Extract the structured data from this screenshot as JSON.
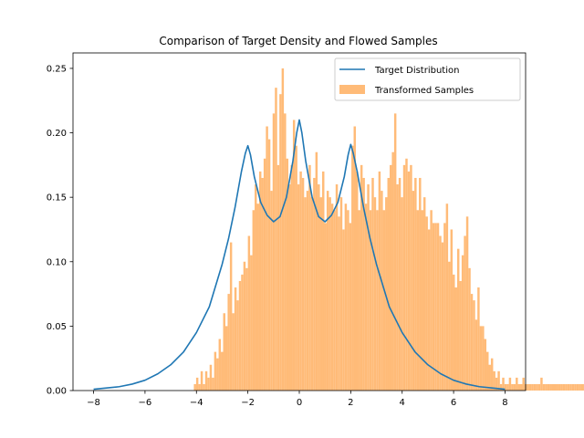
{
  "chart_data": {
    "type": "histogram+line",
    "title": "Comparison of Target Density and Flowed Samples",
    "xlabel": "",
    "ylabel": "",
    "xlim": [
      -8.8,
      8.8
    ],
    "ylim": [
      0,
      0.262
    ],
    "xticks": [
      -8,
      -6,
      -4,
      -2,
      0,
      2,
      4,
      6,
      8
    ],
    "yticks": [
      0.0,
      0.05,
      0.1,
      0.15,
      0.2,
      0.25
    ],
    "xtick_labels": [
      "−8",
      "−6",
      "−4",
      "−2",
      "0",
      "2",
      "4",
      "6",
      "8"
    ],
    "ytick_labels": [
      "0.00",
      "0.05",
      "0.10",
      "0.15",
      "0.20",
      "0.25"
    ],
    "legend": {
      "placement": "upper-right",
      "entries": [
        {
          "label": "Target Distribution",
          "kind": "line",
          "color": "#1f77b4"
        },
        {
          "label": "Transformed Samples",
          "kind": "bar",
          "color": "#ffbb78"
        }
      ]
    },
    "series": [
      {
        "name": "Target Distribution",
        "kind": "line",
        "color": "#1f77b4",
        "x": [
          -8,
          -7.5,
          -7,
          -6.5,
          -6,
          -5.5,
          -5,
          -4.5,
          -4,
          -3.5,
          -3,
          -2.75,
          -2.5,
          -2.25,
          -2.1,
          -2,
          -1.9,
          -1.75,
          -1.5,
          -1.25,
          -1,
          -0.75,
          -0.5,
          -0.25,
          -0.1,
          0,
          0.1,
          0.25,
          0.5,
          0.75,
          1,
          1.25,
          1.5,
          1.75,
          1.9,
          2,
          2.1,
          2.25,
          2.5,
          2.75,
          3,
          3.5,
          4,
          4.5,
          5,
          5.5,
          6,
          6.5,
          7,
          7.5,
          8
        ],
        "y": [
          0.001,
          0.002,
          0.003,
          0.005,
          0.008,
          0.013,
          0.02,
          0.03,
          0.045,
          0.065,
          0.098,
          0.118,
          0.142,
          0.17,
          0.184,
          0.19,
          0.183,
          0.166,
          0.146,
          0.136,
          0.131,
          0.135,
          0.15,
          0.178,
          0.2,
          0.21,
          0.2,
          0.178,
          0.15,
          0.135,
          0.131,
          0.136,
          0.146,
          0.166,
          0.183,
          0.191,
          0.184,
          0.17,
          0.142,
          0.118,
          0.098,
          0.065,
          0.045,
          0.03,
          0.02,
          0.013,
          0.008,
          0.005,
          0.003,
          0.002,
          0.001
        ]
      },
      {
        "name": "Transformed Samples",
        "kind": "histogram",
        "color": "#ffbb78",
        "bin_start": -4.1,
        "bin_width": 0.0875,
        "values": [
          0.005,
          0.01,
          0.005,
          0.015,
          0.005,
          0.015,
          0.01,
          0.02,
          0.01,
          0.03,
          0.025,
          0.04,
          0.03,
          0.06,
          0.05,
          0.075,
          0.115,
          0.06,
          0.08,
          0.07,
          0.085,
          0.09,
          0.1,
          0.095,
          0.12,
          0.105,
          0.14,
          0.16,
          0.145,
          0.17,
          0.165,
          0.18,
          0.205,
          0.195,
          0.155,
          0.215,
          0.235,
          0.175,
          0.23,
          0.25,
          0.215,
          0.18,
          0.16,
          0.175,
          0.21,
          0.19,
          0.16,
          0.17,
          0.165,
          0.15,
          0.155,
          0.175,
          0.15,
          0.165,
          0.185,
          0.16,
          0.15,
          0.17,
          0.13,
          0.155,
          0.15,
          0.145,
          0.14,
          0.16,
          0.135,
          0.15,
          0.125,
          0.145,
          0.14,
          0.13,
          0.19,
          0.205,
          0.17,
          0.14,
          0.175,
          0.165,
          0.145,
          0.16,
          0.14,
          0.165,
          0.15,
          0.14,
          0.17,
          0.155,
          0.14,
          0.15,
          0.165,
          0.175,
          0.185,
          0.215,
          0.16,
          0.165,
          0.15,
          0.175,
          0.18,
          0.17,
          0.175,
          0.155,
          0.165,
          0.14,
          0.165,
          0.14,
          0.15,
          0.135,
          0.125,
          0.14,
          0.13,
          0.13,
          0.13,
          0.12,
          0.115,
          0.13,
          0.145,
          0.1,
          0.125,
          0.09,
          0.08,
          0.11,
          0.085,
          0.105,
          0.12,
          0.135,
          0.095,
          0.075,
          0.07,
          0.055,
          0.08,
          0.05,
          0.05,
          0.04,
          0.03,
          0.02,
          0.025,
          0.015,
          0.01,
          0.015,
          0.005,
          0.01,
          0.005,
          0.005,
          0.01,
          0.005,
          0.005,
          0.01,
          0.005,
          0.005,
          0.01,
          0.005,
          0.005,
          0.005,
          0.005,
          0.005,
          0.005,
          0.005,
          0.01,
          0.005,
          0.005,
          0.005,
          0.005,
          0.005,
          0.005,
          0.005,
          0.005,
          0.005,
          0.005,
          0.005,
          0.005,
          0.005,
          0.005,
          0.005,
          0.005,
          0.005,
          0.005,
          0.005
        ]
      }
    ]
  }
}
